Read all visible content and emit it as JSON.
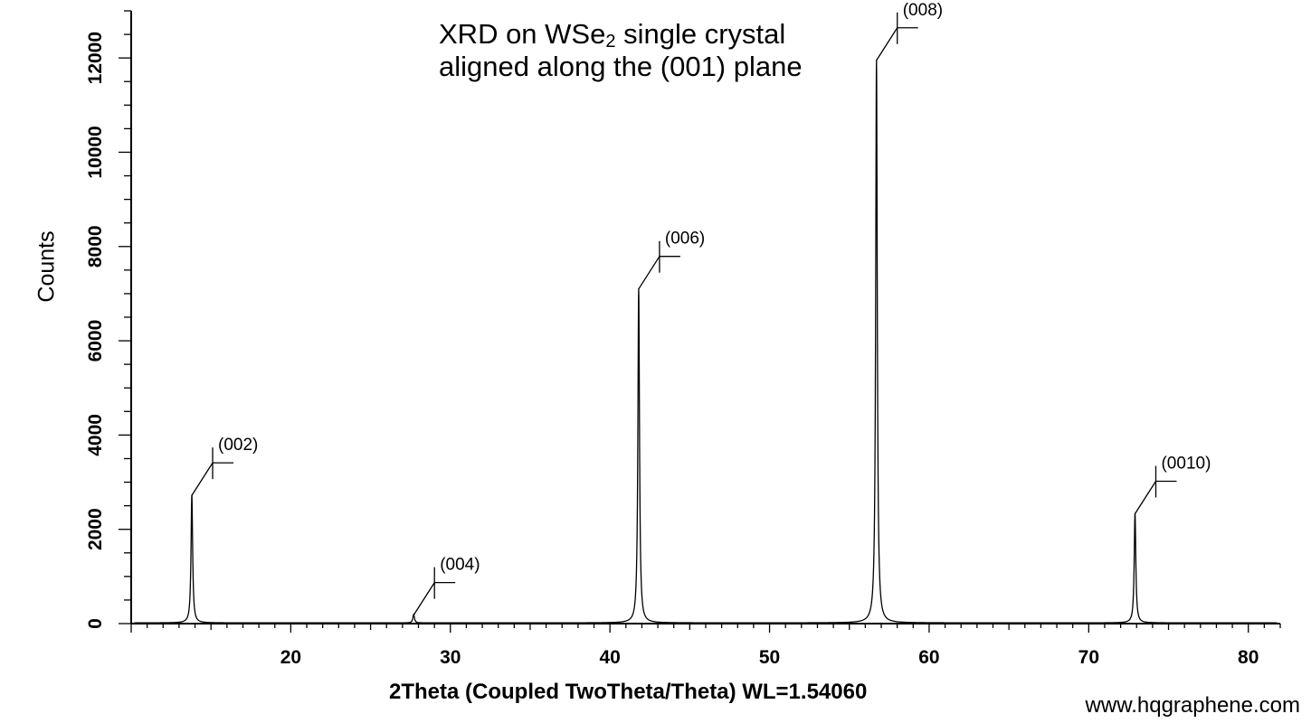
{
  "chart_data": {
    "type": "line",
    "title_line1_prefix": "XRD on WSe",
    "title_line1_sub": "2",
    "title_line1_suffix": " single crystal",
    "title_line2": "aligned along the (001) plane",
    "xlabel": "2Theta (Coupled TwoTheta/Theta) WL=1.54060",
    "ylabel": "Counts",
    "xlim": [
      10,
      82
    ],
    "ylim": [
      0,
      13000
    ],
    "x_ticks": [
      "20",
      "30",
      "40",
      "50",
      "60",
      "70",
      "80"
    ],
    "y_ticks": [
      "0",
      "2000",
      "4000",
      "6000",
      "8000",
      "10000",
      "12000"
    ],
    "grid": false,
    "peaks": [
      {
        "x": 13.8,
        "y": 2720,
        "label": "(002)"
      },
      {
        "x": 27.7,
        "y": 180,
        "label": "(004)"
      },
      {
        "x": 41.8,
        "y": 7100,
        "label": "(006)"
      },
      {
        "x": 56.7,
        "y": 11950,
        "label": "(008)"
      },
      {
        "x": 72.9,
        "y": 2330,
        "label": "(0010)"
      }
    ]
  },
  "watermark": "www.hqgraphene.com"
}
